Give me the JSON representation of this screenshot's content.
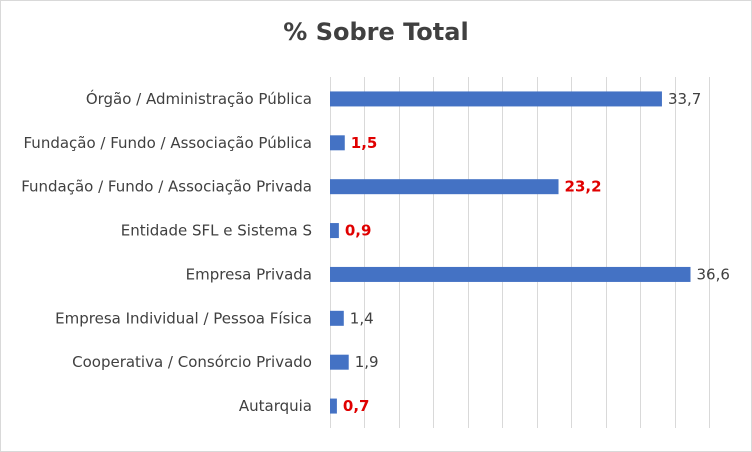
{
  "chart_data": {
    "type": "bar",
    "orientation": "horizontal",
    "title": "% Sobre Total",
    "categories": [
      "Órgão / Administração Pública",
      "Fundação / Fundo / Associação Pública",
      "Fundação / Fundo / Associação Privada",
      "Entidade SFL e Sistema S",
      "Empresa Privada",
      "Empresa Individual / Pessoa Física",
      "Cooperativa / Consórcio Privado",
      "Autarquia"
    ],
    "values": [
      33.7,
      1.5,
      23.2,
      0.9,
      36.6,
      1.4,
      1.9,
      0.7
    ],
    "data_labels": [
      "33,7",
      "1,5",
      "23,2",
      "0,9",
      "36,6",
      "1,4",
      "1,9",
      "0,7"
    ],
    "highlighted": [
      false,
      true,
      true,
      true,
      false,
      false,
      false,
      true
    ],
    "xlim": [
      0,
      40
    ],
    "gridlines": "vertical",
    "grid_step": 3.5,
    "legend": "none",
    "colors": {
      "bar": "#4472c4",
      "label_normal": "#404040",
      "label_highlight": "#e00000",
      "grid": "#d9d9d9",
      "title": "#404040"
    }
  }
}
